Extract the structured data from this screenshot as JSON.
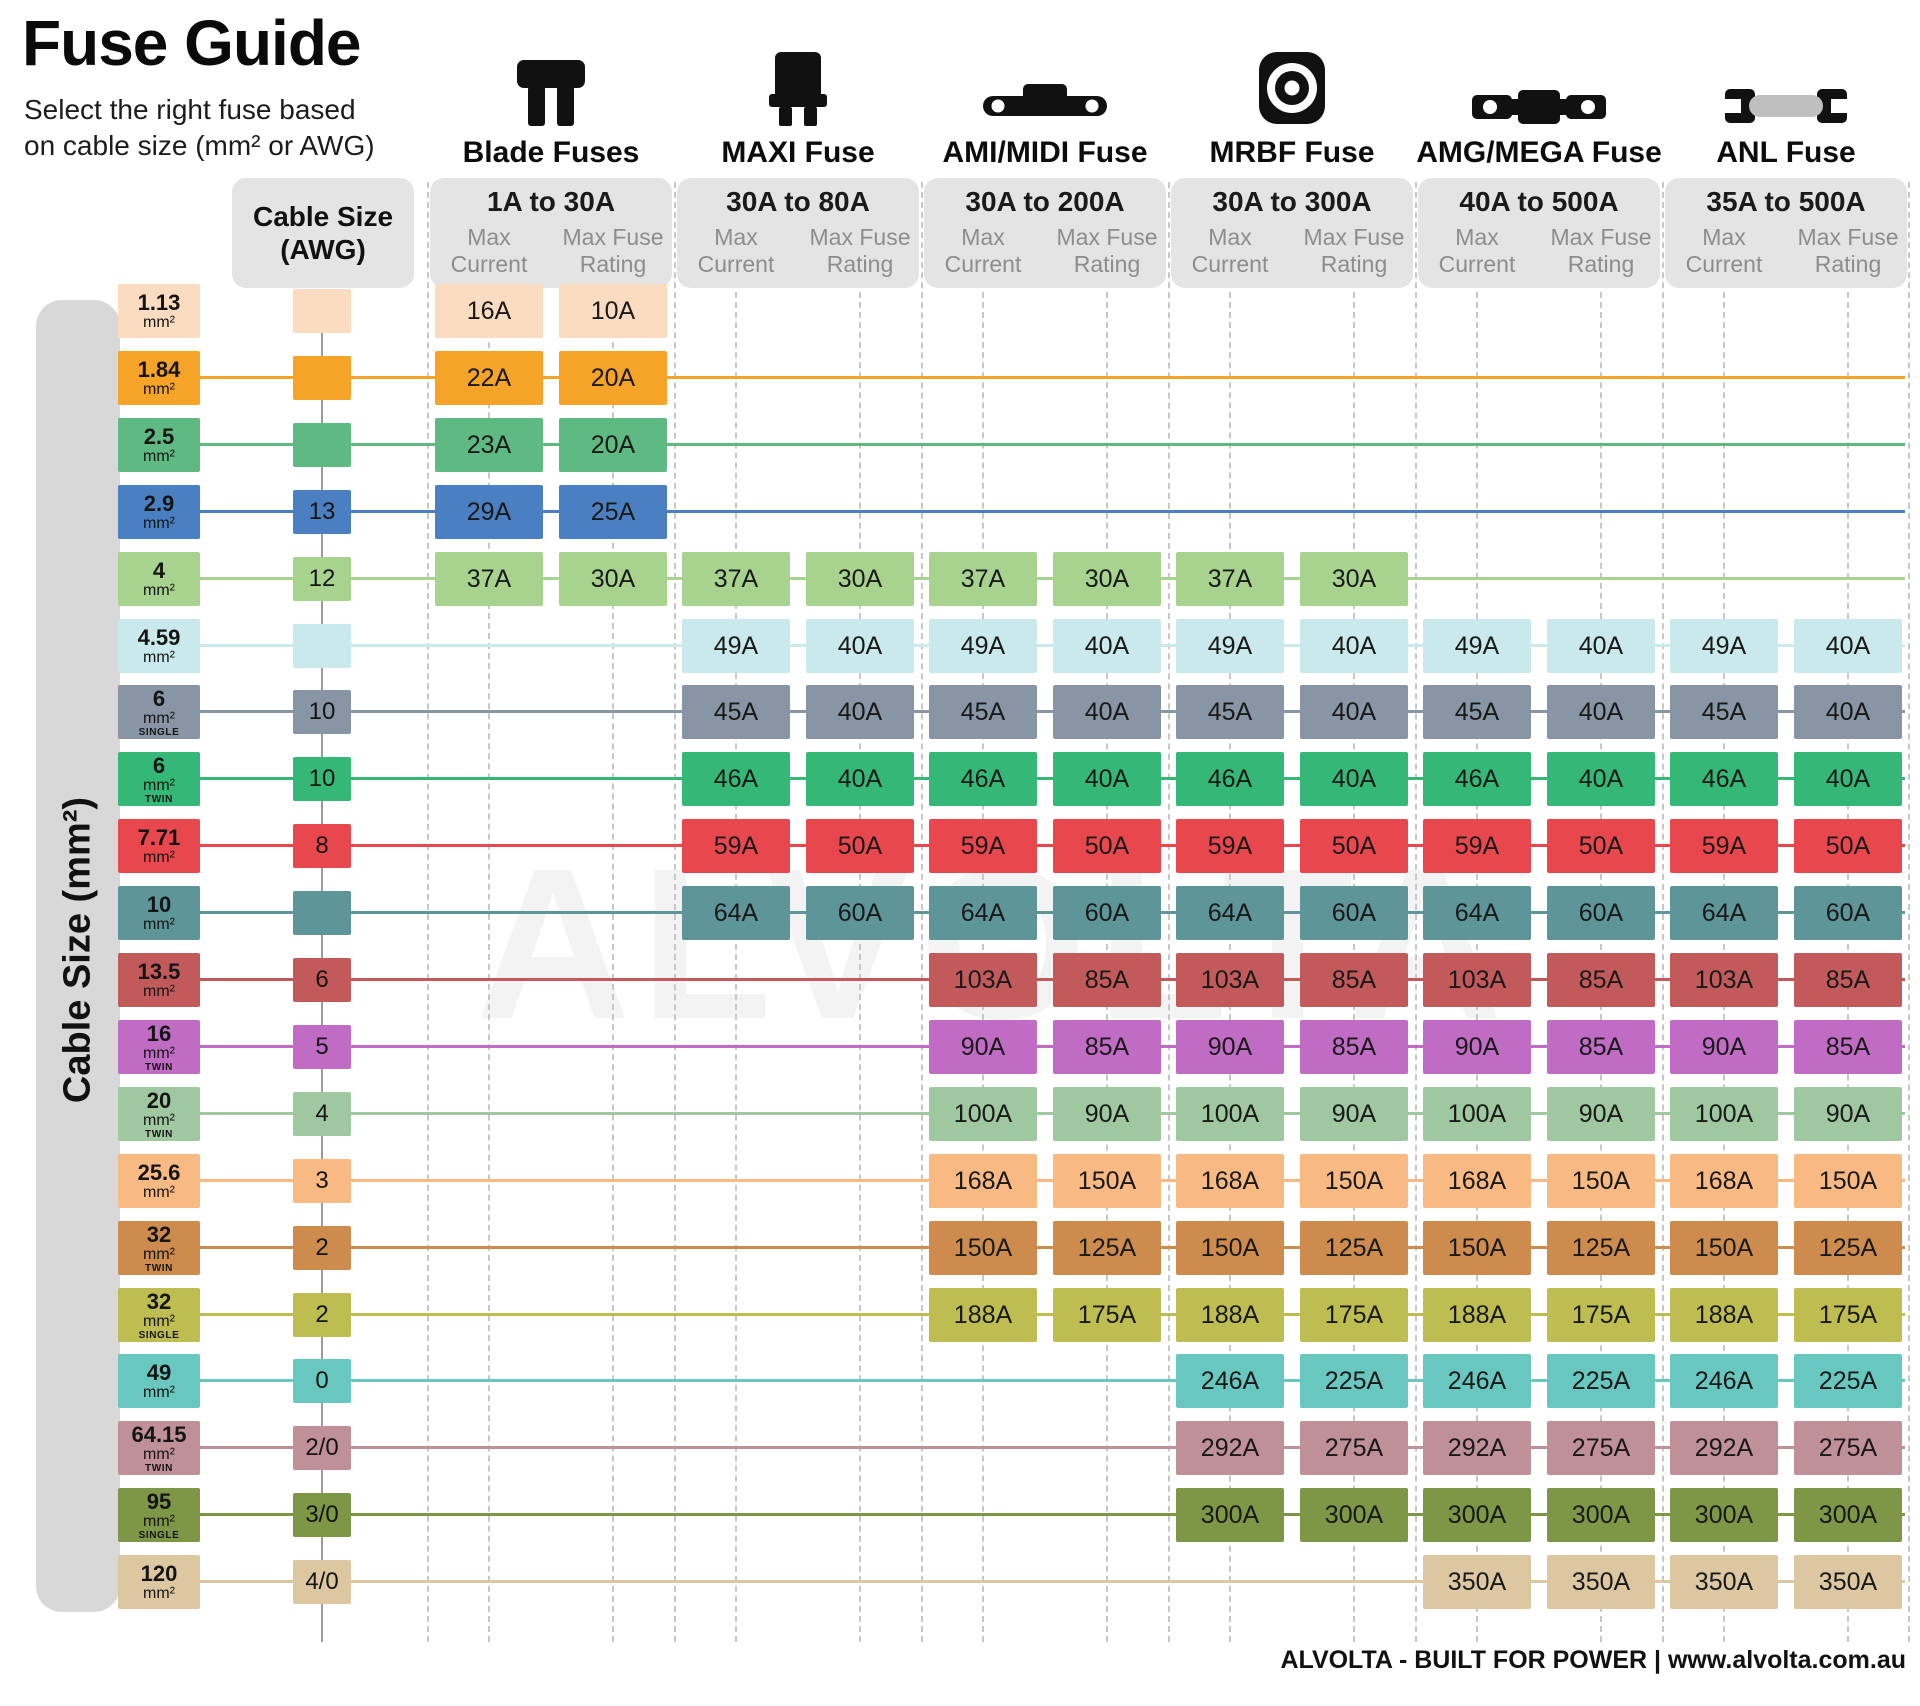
{
  "page": {
    "title": "Fuse Guide",
    "subtitle": [
      "Select the right fuse based",
      "on cable size (mm² or AWG)"
    ],
    "watermark": "ALVOLTA",
    "left_axis_label": "Cable Size (mm²)",
    "awg_header": [
      "Cable Size",
      "(AWG)"
    ],
    "footer": "ALVOLTA - BUILT FOR POWER | www.alvolta.com.au"
  },
  "chart_data": {
    "type": "table",
    "title": "Fuse Guide",
    "subcol_labels": [
      [
        "Max",
        "Current"
      ],
      [
        "Max Fuse",
        "Rating"
      ]
    ],
    "fuse_types": [
      {
        "name": "Blade Fuses",
        "range": "1A to 30A",
        "icon": "blade-fuse-icon"
      },
      {
        "name": "MAXI Fuse",
        "range": "30A to 80A",
        "icon": "maxi-fuse-icon"
      },
      {
        "name": "AMI/MIDI Fuse",
        "range": "30A to 200A",
        "icon": "ami-midi-fuse-icon"
      },
      {
        "name": "MRBF Fuse",
        "range": "30A to 300A",
        "icon": "mrbf-fuse-icon"
      },
      {
        "name": "AMG/MEGA Fuse",
        "range": "40A to 500A",
        "icon": "amg-mega-fuse-icon"
      },
      {
        "name": "ANL Fuse",
        "range": "35A to 500A",
        "icon": "anl-fuse-icon"
      }
    ],
    "rows": [
      {
        "size": "1.13",
        "unit": "mm²",
        "variant": "",
        "awg": "",
        "color": "#fbdcc1",
        "line": false,
        "cells": [
          [
            "16A",
            "10A"
          ],
          null,
          null,
          null,
          null,
          null
        ]
      },
      {
        "size": "1.84",
        "unit": "mm²",
        "variant": "",
        "awg": "",
        "color": "#f6a427",
        "line": true,
        "cells": [
          [
            "22A",
            "20A"
          ],
          null,
          null,
          null,
          null,
          null
        ]
      },
      {
        "size": "2.5",
        "unit": "mm²",
        "variant": "",
        "awg": "",
        "color": "#5eba82",
        "line": true,
        "cells": [
          [
            "23A",
            "20A"
          ],
          null,
          null,
          null,
          null,
          null
        ]
      },
      {
        "size": "2.9",
        "unit": "mm²",
        "variant": "",
        "awg": "13",
        "color": "#4a80c1",
        "line": true,
        "cells": [
          [
            "29A",
            "25A"
          ],
          null,
          null,
          null,
          null,
          null
        ]
      },
      {
        "size": "4",
        "unit": "mm²",
        "variant": "",
        "awg": "12",
        "color": "#a7d38e",
        "line": true,
        "cells": [
          [
            "37A",
            "30A"
          ],
          [
            "37A",
            "30A"
          ],
          [
            "37A",
            "30A"
          ],
          [
            "37A",
            "30A"
          ],
          null,
          null
        ]
      },
      {
        "size": "4.59",
        "unit": "mm²",
        "variant": "",
        "awg": "",
        "color": "#c9e9ec",
        "line": true,
        "cells": [
          null,
          [
            "49A",
            "40A"
          ],
          [
            "49A",
            "40A"
          ],
          [
            "49A",
            "40A"
          ],
          [
            "49A",
            "40A"
          ],
          [
            "49A",
            "40A"
          ]
        ]
      },
      {
        "size": "6",
        "unit": "mm²",
        "variant": "SINGLE",
        "awg": "10",
        "color": "#8795a5",
        "line": true,
        "cells": [
          null,
          [
            "45A",
            "40A"
          ],
          [
            "45A",
            "40A"
          ],
          [
            "45A",
            "40A"
          ],
          [
            "45A",
            "40A"
          ],
          [
            "45A",
            "40A"
          ]
        ]
      },
      {
        "size": "6",
        "unit": "mm²",
        "variant": "TWIN",
        "awg": "10",
        "color": "#35b877",
        "line": true,
        "cells": [
          null,
          [
            "46A",
            "40A"
          ],
          [
            "46A",
            "40A"
          ],
          [
            "46A",
            "40A"
          ],
          [
            "46A",
            "40A"
          ],
          [
            "46A",
            "40A"
          ]
        ]
      },
      {
        "size": "7.71",
        "unit": "mm²",
        "variant": "",
        "awg": "8",
        "color": "#e9474e",
        "line": true,
        "cells": [
          null,
          [
            "59A",
            "50A"
          ],
          [
            "59A",
            "50A"
          ],
          [
            "59A",
            "50A"
          ],
          [
            "59A",
            "50A"
          ],
          [
            "59A",
            "50A"
          ]
        ]
      },
      {
        "size": "10",
        "unit": "mm²",
        "variant": "",
        "awg": "",
        "color": "#5d9598",
        "line": true,
        "cells": [
          null,
          [
            "64A",
            "60A"
          ],
          [
            "64A",
            "60A"
          ],
          [
            "64A",
            "60A"
          ],
          [
            "64A",
            "60A"
          ],
          [
            "64A",
            "60A"
          ]
        ]
      },
      {
        "size": "13.5",
        "unit": "mm²",
        "variant": "",
        "awg": "6",
        "color": "#c25a5c",
        "line": true,
        "cells": [
          null,
          null,
          [
            "103A",
            "85A"
          ],
          [
            "103A",
            "85A"
          ],
          [
            "103A",
            "85A"
          ],
          [
            "103A",
            "85A"
          ]
        ]
      },
      {
        "size": "16",
        "unit": "mm²",
        "variant": "TWIN",
        "awg": "5",
        "color": "#c06cc4",
        "line": true,
        "cells": [
          null,
          null,
          [
            "90A",
            "85A"
          ],
          [
            "90A",
            "85A"
          ],
          [
            "90A",
            "85A"
          ],
          [
            "90A",
            "85A"
          ]
        ]
      },
      {
        "size": "20",
        "unit": "mm²",
        "variant": "TWIN",
        "awg": "4",
        "color": "#a0c8a0",
        "line": true,
        "cells": [
          null,
          null,
          [
            "100A",
            "90A"
          ],
          [
            "100A",
            "90A"
          ],
          [
            "100A",
            "90A"
          ],
          [
            "100A",
            "90A"
          ]
        ]
      },
      {
        "size": "25.6",
        "unit": "mm²",
        "variant": "",
        "awg": "3",
        "color": "#f8ba82",
        "line": true,
        "cells": [
          null,
          null,
          [
            "168A",
            "150A"
          ],
          [
            "168A",
            "150A"
          ],
          [
            "168A",
            "150A"
          ],
          [
            "168A",
            "150A"
          ]
        ]
      },
      {
        "size": "32",
        "unit": "mm²",
        "variant": "TWIN",
        "awg": "2",
        "color": "#cd8c4e",
        "line": true,
        "cells": [
          null,
          null,
          [
            "150A",
            "125A"
          ],
          [
            "150A",
            "125A"
          ],
          [
            "150A",
            "125A"
          ],
          [
            "150A",
            "125A"
          ]
        ]
      },
      {
        "size": "32",
        "unit": "mm²",
        "variant": "SINGLE",
        "awg": "2",
        "color": "#bdbd52",
        "line": true,
        "cells": [
          null,
          null,
          [
            "188A",
            "175A"
          ],
          [
            "188A",
            "175A"
          ],
          [
            "188A",
            "175A"
          ],
          [
            "188A",
            "175A"
          ]
        ]
      },
      {
        "size": "49",
        "unit": "mm²",
        "variant": "",
        "awg": "0",
        "color": "#68c8c0",
        "line": true,
        "cells": [
          null,
          null,
          null,
          [
            "246A",
            "225A"
          ],
          [
            "246A",
            "225A"
          ],
          [
            "246A",
            "225A"
          ]
        ]
      },
      {
        "size": "64.15",
        "unit": "mm²",
        "variant": "TWIN",
        "awg": "2/0",
        "color": "#bf9097",
        "line": true,
        "cells": [
          null,
          null,
          null,
          [
            "292A",
            "275A"
          ],
          [
            "292A",
            "275A"
          ],
          [
            "292A",
            "275A"
          ]
        ]
      },
      {
        "size": "95",
        "unit": "mm²",
        "variant": "SINGLE",
        "awg": "3/0",
        "color": "#7d9747",
        "line": true,
        "cells": [
          null,
          null,
          null,
          [
            "300A",
            "300A"
          ],
          [
            "300A",
            "300A"
          ],
          [
            "300A",
            "300A"
          ]
        ]
      },
      {
        "size": "120",
        "unit": "mm²",
        "variant": "",
        "awg": "4/0",
        "color": "#ddc7a1",
        "line": true,
        "cells": [
          null,
          null,
          null,
          null,
          [
            "350A",
            "350A"
          ],
          [
            "350A",
            "350A"
          ]
        ]
      }
    ]
  }
}
